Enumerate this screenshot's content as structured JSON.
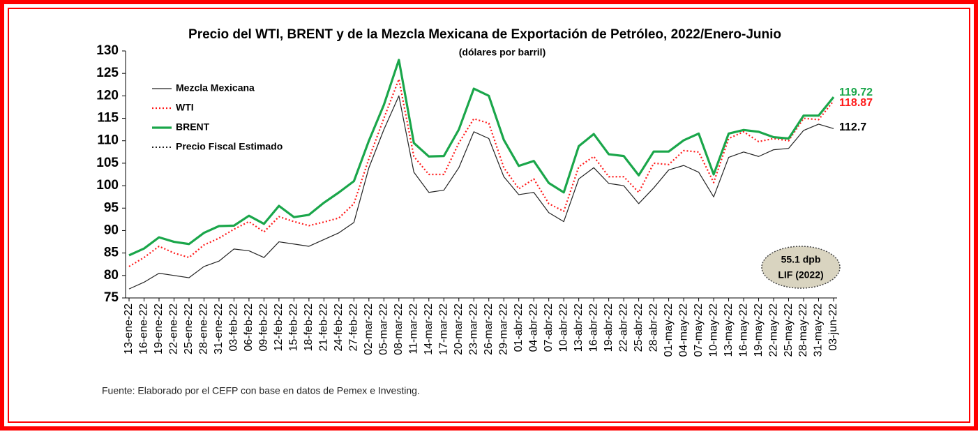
{
  "chart_data": {
    "type": "line",
    "title": "Precio del WTI, BRENT y de la Mezcla Mexicana de Exportación de Petróleo, 2022/Enero-Junio",
    "subtitle": "(dólares por barril)",
    "source": "Fuente: Elaborado por el CEFP con base en datos de Pemex e Investing.",
    "annotation": [
      "55.1 dpb",
      "LIF (2022)"
    ],
    "categories": [
      "13-ene-22",
      "16-ene-22",
      "19-ene-22",
      "22-ene-22",
      "25-ene-22",
      "28-ene-22",
      "31-ene-22",
      "03-feb-22",
      "06-feb-22",
      "09-feb-22",
      "12-feb-22",
      "15-feb-22",
      "18-feb-22",
      "21-feb-22",
      "24-feb-22",
      "27-feb-22",
      "02-mar-22",
      "05-mar-22",
      "08-mar-22",
      "11-mar-22",
      "14-mar-22",
      "17-mar-22",
      "20-mar-22",
      "23-mar-22",
      "26-mar-22",
      "29-mar-22",
      "01-abr-22",
      "04-abr-22",
      "07-abr-22",
      "10-abr-22",
      "13-abr-22",
      "16-abr-22",
      "19-abr-22",
      "22-abr-22",
      "25-abr-22",
      "28-abr-22",
      "01-may-22",
      "04-may-22",
      "07-may-22",
      "10-may-22",
      "13-may-22",
      "16-may-22",
      "19-may-22",
      "22-may-22",
      "25-may-22",
      "28-may-22",
      "31-may-22",
      "03-jun-22"
    ],
    "series": [
      {
        "name": "Mezcla Mexicana",
        "color": "#222222",
        "style": "solid",
        "values": [
          77,
          78.5,
          80.5,
          80,
          79.5,
          82,
          83.2,
          85.9,
          85.5,
          84,
          87.5,
          87,
          86.5,
          88,
          89.5,
          91.8,
          104,
          112.5,
          120,
          103,
          98.5,
          99,
          104,
          112,
          110.5,
          102,
          98,
          98.5,
          94,
          92,
          101.5,
          104,
          100.5,
          100,
          96,
          99.5,
          103.5,
          104.5,
          103,
          97.5,
          106.3,
          107.5,
          106.5,
          108,
          108.3,
          112.3,
          113.7,
          112.7
        ]
      },
      {
        "name": "WTI",
        "color": "#ff1a1a",
        "style": "dotted",
        "values": [
          82,
          84,
          86.5,
          85,
          84,
          86.8,
          88.3,
          90.3,
          92,
          89.7,
          93.1,
          92,
          91.1,
          91.9,
          92.8,
          96,
          106,
          115,
          123.7,
          106.5,
          102.5,
          102.5,
          109.5,
          114.9,
          113.9,
          104,
          99.3,
          101.5,
          96,
          94.3,
          104.2,
          106.5,
          102,
          102,
          98.5,
          105,
          104.7,
          107.8,
          107.5,
          100.7,
          110.5,
          112,
          109.8,
          110.5,
          110,
          115,
          114.7,
          118.87
        ]
      },
      {
        "name": "BRENT",
        "color": "#1aa64a",
        "style": "thick",
        "values": [
          84.5,
          86,
          88.5,
          87.5,
          87,
          89.5,
          91,
          91.1,
          93.3,
          91.5,
          95.5,
          93,
          93.5,
          96.2,
          98.5,
          101,
          110,
          118,
          128,
          109.5,
          106.5,
          106.6,
          112.5,
          121.6,
          120,
          110.2,
          104.4,
          105.5,
          100.6,
          98.5,
          108.8,
          111.5,
          107,
          106.6,
          102.3,
          107.6,
          107.6,
          110.1,
          111.6,
          102.5,
          111.6,
          112.4,
          112,
          110.8,
          110.5,
          115.6,
          115.6,
          119.72
        ]
      },
      {
        "name": "Precio Fiscal Estimado",
        "color": "#222222",
        "style": "dotted-black"
      }
    ],
    "ylim": [
      75,
      130
    ],
    "yticks": [
      75,
      80,
      85,
      90,
      95,
      100,
      105,
      110,
      115,
      120,
      125,
      130
    ]
  }
}
